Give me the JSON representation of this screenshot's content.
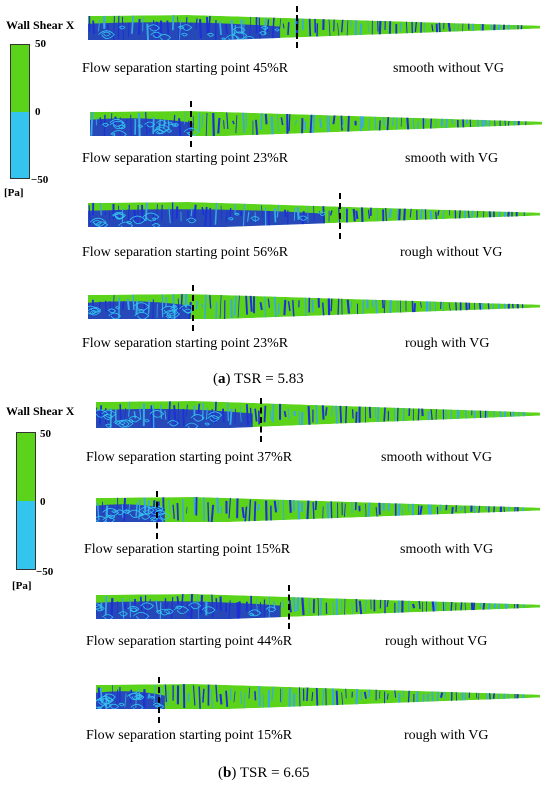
{
  "colors": {
    "positive": "#5bd31a",
    "negative": "#33c5ee",
    "streak": "#1d2fd6",
    "streak_light": "#39a8e6"
  },
  "legend": {
    "title": "Wall Shear X",
    "max": "50",
    "mid": "0",
    "min": "−50",
    "unit": "[Pa]"
  },
  "panel_a": {
    "caption_letter": "a",
    "caption_text": " TSR = 5.83",
    "rows": [
      {
        "label": "Flow separation starting point 45%R",
        "condition": "smooth without VG",
        "separation_percent": 45
      },
      {
        "label": "Flow separation starting point 23%R",
        "condition": "smooth with VG",
        "separation_percent": 23
      },
      {
        "label": "Flow separation starting point 56%R",
        "condition": "rough without VG",
        "separation_percent": 56
      },
      {
        "label": "Flow separation starting point 23%R",
        "condition": "rough with VG",
        "separation_percent": 23
      }
    ]
  },
  "panel_b": {
    "caption_letter": "b",
    "caption_text": " TSR = 6.65",
    "rows": [
      {
        "label": "Flow separation starting point 37%R",
        "condition": "smooth without VG",
        "separation_percent": 37
      },
      {
        "label": "Flow separation starting point 15%R",
        "condition": "smooth with VG",
        "separation_percent": 15
      },
      {
        "label": "Flow separation starting point 44%R",
        "condition": "rough without VG",
        "separation_percent": 44
      },
      {
        "label": "Flow separation starting point 15%R",
        "condition": "rough with VG",
        "separation_percent": 15
      }
    ]
  }
}
